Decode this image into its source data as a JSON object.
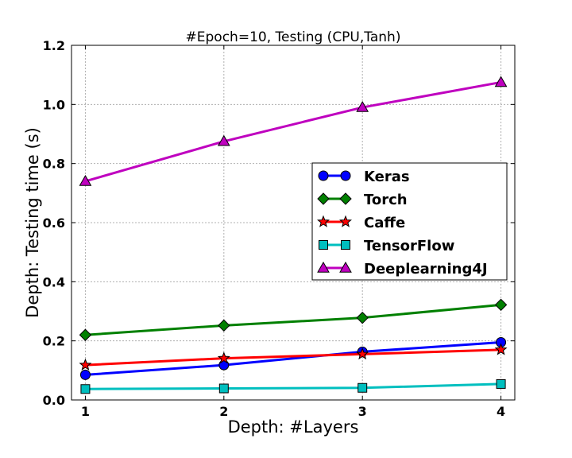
{
  "chart_data": {
    "type": "line",
    "title": "#Epoch=10, Testing (CPU,Tanh)",
    "xlabel": "Depth: #Layers",
    "ylabel": "Depth: Testing time (s)",
    "x": [
      1,
      2,
      3,
      4
    ],
    "xticks": [
      "1",
      "2",
      "3",
      "4"
    ],
    "xlim": [
      0.9,
      4.1
    ],
    "ylim": [
      0.0,
      1.2
    ],
    "yticks": [
      "0.0",
      "0.2",
      "0.4",
      "0.6",
      "0.8",
      "1.0",
      "1.2"
    ],
    "grid": true,
    "legend_position": "center-right",
    "series": [
      {
        "name": "Keras",
        "color": "#0000ff",
        "marker": "circle",
        "values": [
          0.085,
          0.118,
          0.163,
          0.195
        ]
      },
      {
        "name": "Torch",
        "color": "#008000",
        "marker": "diamond",
        "values": [
          0.22,
          0.252,
          0.278,
          0.322
        ]
      },
      {
        "name": "Caffe",
        "color": "#ff0000",
        "marker": "star",
        "values": [
          0.118,
          0.141,
          0.155,
          0.17
        ]
      },
      {
        "name": "TensorFlow",
        "color": "#00bfbf",
        "marker": "square",
        "values": [
          0.037,
          0.039,
          0.041,
          0.054
        ]
      },
      {
        "name": "Deeplearning4J",
        "color": "#bf00bf",
        "marker": "triangle",
        "values": [
          0.74,
          0.875,
          0.99,
          1.075
        ]
      }
    ]
  }
}
